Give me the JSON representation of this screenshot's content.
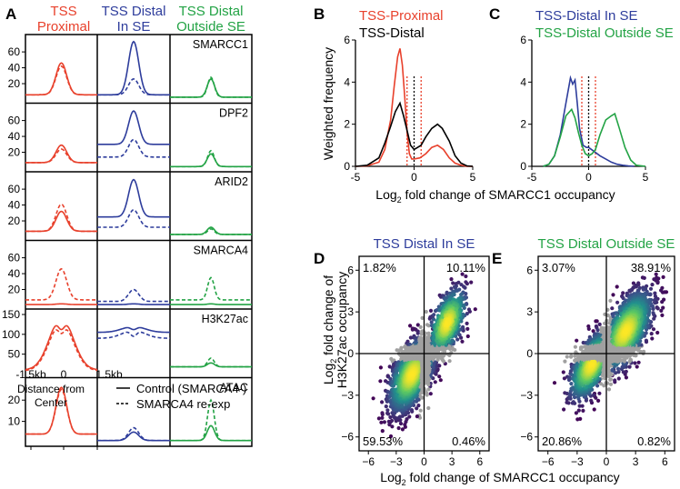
{
  "colors": {
    "proximal": "#e8412c",
    "distal_in": "#2e3d9c",
    "distal_out": "#23a345",
    "distal": "#000000",
    "axis": "#000000"
  },
  "panel_letters": [
    "A",
    "B",
    "C",
    "D",
    "E"
  ],
  "panelA": {
    "columns": [
      {
        "line1": "TSS",
        "line2": "Proximal",
        "color_key": "proximal"
      },
      {
        "line1": "TSS Distal",
        "line2": "In SE",
        "color_key": "distal_in"
      },
      {
        "line1": "TSS Distal",
        "line2": "Outside SE",
        "color_key": "distal_out"
      }
    ],
    "x_ticks": [
      "-1.5kb",
      "0",
      "1.5kb"
    ],
    "xlabel_line1": "Distance from",
    "xlabel_line2": "Center",
    "legend": [
      {
        "label": "Control (SMARCA4-)",
        "style": "solid"
      },
      {
        "label": "SMARCA4 re-exp",
        "style": "dashed"
      }
    ]
  },
  "panelB": {
    "xlabel": "Log",
    "xlabel_sub": "2",
    "xlabel_rest": " fold change of SMARCC1 occupancy"
  },
  "panelDE": {
    "ylabel_line1_pre": "Log",
    "ylabel_line1_sub": "2",
    "ylabel_line1_post": " fold change of",
    "ylabel_line2": "H3K27ac occupancy",
    "xlabel_pre": "Log",
    "xlabel_sub": "2",
    "xlabel_post": " fold change of SMARCC1 occupancy"
  },
  "chart_data": [
    {
      "id": "A",
      "type": "line",
      "x_ticks": [
        "-1.5kb",
        "0",
        "1.5kb"
      ],
      "rows": [
        {
          "label": "SMARCC1",
          "yticks": [
            20,
            40,
            60
          ],
          "ylim": [
            0,
            75
          ],
          "proximal": {
            "control": {
              "base": 6,
              "peak": 46
            },
            "reexp": {
              "base": 6,
              "peak": 42
            }
          },
          "distal_in": {
            "control": {
              "base": 6,
              "peak": 73
            },
            "reexp": {
              "base": 6,
              "peak": 26
            }
          },
          "distal_out": {
            "control": {
              "base": 3,
              "peak": 26
            },
            "reexp": {
              "base": 3,
              "peak": 28
            }
          }
        },
        {
          "label": "DPF2",
          "yticks": [
            20,
            40,
            60
          ],
          "ylim": [
            0,
            75
          ],
          "proximal": {
            "control": {
              "base": 7,
              "peak": 29
            },
            "reexp": {
              "base": 7,
              "peak": 24
            }
          },
          "distal_in": {
            "control": {
              "base": 30,
              "peak": 72
            },
            "reexp": {
              "base": 14,
              "peak": 36
            }
          },
          "distal_out": {
            "control": {
              "base": 2,
              "peak": 18
            },
            "reexp": {
              "base": 2,
              "peak": 22
            }
          }
        },
        {
          "label": "ARID2",
          "yticks": [
            20,
            40,
            60
          ],
          "ylim": [
            0,
            75
          ],
          "proximal": {
            "control": {
              "base": 7,
              "peak": 32
            },
            "reexp": {
              "base": 7,
              "peak": 41
            }
          },
          "distal_in": {
            "control": {
              "base": 25,
              "peak": 72
            },
            "reexp": {
              "base": 12,
              "peak": 34
            }
          },
          "distal_out": {
            "control": {
              "base": 3,
              "peak": 12
            },
            "reexp": {
              "base": 3,
              "peak": 10
            }
          }
        },
        {
          "label": "SMARCA4",
          "yticks": [
            20,
            40,
            60
          ],
          "ylim": [
            0,
            75
          ],
          "proximal": {
            "control": {
              "base": 1,
              "peak": 2
            },
            "reexp": {
              "base": 7,
              "peak": 46
            }
          },
          "distal_in": {
            "control": {
              "base": 1,
              "peak": 2
            },
            "reexp": {
              "base": 5,
              "peak": 20
            }
          },
          "distal_out": {
            "control": {
              "base": 1,
              "peak": 2
            },
            "reexp": {
              "base": 7,
              "peak": 35
            }
          }
        },
        {
          "label": "H3K27ac",
          "yticks": [
            50,
            100,
            150
          ],
          "ylim": [
            0,
            150
          ],
          "proximal": {
            "control": {
              "base": 10,
              "peak": 142,
              "dip": 112
            },
            "reexp": {
              "base": 8,
              "peak": 130,
              "dip": 102
            }
          },
          "distal_in": {
            "control": {
              "base": 105,
              "peak": 120,
              "dip": 112
            },
            "reexp": {
              "base": 90,
              "peak": 110,
              "dip": 95
            }
          },
          "distal_out": {
            "control": {
              "base": 18,
              "peak": 28
            },
            "reexp": {
              "base": 18,
              "peak": 40
            }
          }
        },
        {
          "label": "ATAC",
          "yticks": [
            10,
            20
          ],
          "ylim": [
            0,
            28
          ],
          "proximal": {
            "control": {
              "base": 4,
              "peak": 26
            },
            "reexp": {
              "base": 4,
              "peak": 25
            }
          },
          "distal_in": {
            "control": {
              "base": 1,
              "peak": 5
            },
            "reexp": {
              "base": 1,
              "peak": 7
            }
          },
          "distal_out": {
            "control": {
              "base": 1,
              "peak": 8
            },
            "reexp": {
              "base": 1,
              "peak": 20
            }
          }
        }
      ]
    },
    {
      "id": "B",
      "type": "line",
      "ylabel": "Weighted frequency",
      "xlim": [
        -5,
        5
      ],
      "ylim": [
        0,
        6
      ],
      "x_ticks": [
        -5,
        0,
        5
      ],
      "y_ticks": [
        0,
        2,
        4,
        6
      ],
      "series": [
        {
          "name": "TSS-Proximal",
          "color_key": "proximal",
          "x": [
            -5,
            -4,
            -3,
            -2.5,
            -2,
            -1.7,
            -1.4,
            -1.2,
            -1.0,
            -0.8,
            -0.6,
            -0.4,
            -0.2,
            0,
            0.5,
            1,
            1.5,
            2,
            2.5,
            3,
            3.5,
            4,
            4.5,
            5
          ],
          "y": [
            0,
            0.02,
            0.2,
            0.8,
            2.2,
            3.8,
            5.2,
            5.6,
            4.8,
            3.3,
            1.6,
            0.6,
            0.35,
            0.35,
            0.4,
            0.6,
            0.9,
            1.0,
            0.8,
            0.4,
            0.15,
            0.05,
            0,
            0
          ]
        },
        {
          "name": "TSS-Distal",
          "color_key": "distal",
          "x": [
            -5,
            -4,
            -3,
            -2.5,
            -2,
            -1.6,
            -1.2,
            -0.9,
            -0.6,
            -0.3,
            0,
            0.3,
            0.6,
            1,
            1.5,
            2,
            2.4,
            3,
            3.5,
            4,
            4.5,
            5
          ],
          "y": [
            0,
            0.05,
            0.4,
            1.1,
            1.9,
            2.6,
            3.0,
            2.4,
            1.7,
            1.0,
            0.8,
            0.9,
            1.0,
            1.4,
            1.8,
            2.0,
            1.8,
            1.2,
            0.5,
            0.15,
            0.02,
            0
          ]
        }
      ],
      "vlines": [
        {
          "x": -0.6,
          "color_key": "proximal",
          "style": "dotted"
        },
        {
          "x": 0,
          "color_key": "distal",
          "style": "dotted"
        },
        {
          "x": 0.6,
          "color_key": "proximal",
          "style": "dotted"
        }
      ]
    },
    {
      "id": "C",
      "type": "line",
      "xlim": [
        -5,
        5
      ],
      "ylim": [
        0,
        6
      ],
      "x_ticks": [
        -5,
        0,
        5
      ],
      "y_ticks": [
        0,
        2,
        4,
        6
      ],
      "series": [
        {
          "name": "TSS-Distal In SE",
          "color_key": "distal_in",
          "x": [
            -4,
            -3.5,
            -3,
            -2.5,
            -2,
            -1.6,
            -1.4,
            -1.2,
            -1.0,
            -0.8,
            -0.5,
            -0.2,
            0,
            0.5,
            1,
            1.5,
            2,
            2.5,
            3,
            3.5,
            4
          ],
          "y": [
            0,
            0.1,
            0.5,
            1.5,
            3.0,
            4.2,
            3.9,
            4.1,
            3.0,
            1.8,
            1.0,
            0.9,
            0.9,
            0.7,
            0.5,
            0.35,
            0.2,
            0.1,
            0.05,
            0.02,
            0
          ]
        },
        {
          "name": "TSS-Distal Outside SE",
          "color_key": "distal_out",
          "x": [
            -4,
            -3.5,
            -3,
            -2.5,
            -2,
            -1.5,
            -1.2,
            -0.9,
            -0.6,
            -0.3,
            0,
            0.3,
            0.6,
            1,
            1.5,
            2,
            2.3,
            2.7,
            3.2,
            3.7,
            4.2,
            5
          ],
          "y": [
            0,
            0.1,
            0.5,
            1.4,
            2.4,
            2.7,
            2.3,
            1.6,
            1.0,
            0.6,
            0.5,
            0.6,
            0.8,
            1.5,
            2.2,
            2.4,
            2.5,
            1.8,
            0.9,
            0.3,
            0.05,
            0
          ]
        }
      ],
      "vlines": [
        {
          "x": -0.6,
          "color_key": "proximal",
          "style": "dotted"
        },
        {
          "x": 0,
          "color_key": "distal",
          "style": "dotted"
        },
        {
          "x": 0.6,
          "color_key": "proximal",
          "style": "dotted"
        }
      ]
    },
    {
      "id": "D",
      "type": "scatter",
      "title": "TSS Distal In SE",
      "title_color_key": "distal_in",
      "xlim": [
        -7,
        7
      ],
      "ylim": [
        -7,
        7
      ],
      "x_ticks": [
        -6,
        -3,
        0,
        3,
        6
      ],
      "y_ticks": [
        -6,
        -3,
        0,
        3,
        6
      ],
      "quadrant_labels": {
        "top_left": "1.82%",
        "top_right": "10.11%",
        "bottom_left": "59.53%",
        "bottom_right": "0.46%"
      },
      "clusters": [
        {
          "cx": -1.3,
          "cy": -1.5,
          "sx": 1.2,
          "sy": 1.3,
          "rho": 0.55,
          "n": 1800
        },
        {
          "cx": 2.5,
          "cy": 2.2,
          "sx": 1.0,
          "sy": 1.2,
          "rho": 0.55,
          "n": 700
        }
      ]
    },
    {
      "id": "E",
      "type": "scatter",
      "title": "TSS Distal Outside SE",
      "title_color_key": "distal_out",
      "xlim": [
        -7,
        7
      ],
      "ylim": [
        -7,
        7
      ],
      "x_ticks": [
        -6,
        -3,
        0,
        3,
        6
      ],
      "y_ticks": [
        -6,
        -3,
        0,
        3,
        6
      ],
      "quadrant_labels": {
        "top_left": "3.07%",
        "top_right": "38.91%",
        "bottom_left": "20.86%",
        "bottom_right": "0.82%"
      },
      "clusters": [
        {
          "cx": -1.5,
          "cy": -0.8,
          "sx": 1.1,
          "sy": 1.2,
          "rho": 0.6,
          "n": 1200
        },
        {
          "cx": 2.0,
          "cy": 1.6,
          "sx": 1.3,
          "sy": 1.4,
          "rho": 0.6,
          "n": 1600
        }
      ]
    }
  ]
}
